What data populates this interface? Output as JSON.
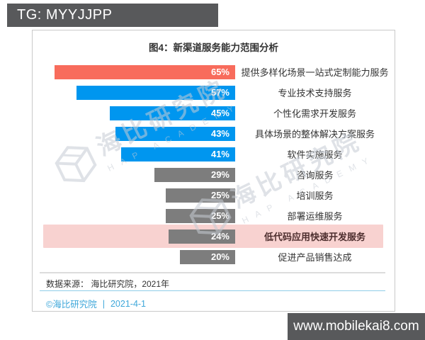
{
  "overlay": {
    "telegram_badge": "TG: MYYJJPP",
    "website_badge": "www.mobilekai8.com",
    "badge_bg": "#58595b"
  },
  "chart": {
    "title": "图4：新渠道服务能力范围分析",
    "source_line": "数据来源： 海比研究院，2021年",
    "copyright": "©海比研究院",
    "copyright_separator": "|",
    "copyright_date": "2021-4-1",
    "watermark": {
      "cn": "海比研究院",
      "en": "HAP ACADEMY"
    }
  },
  "chart_data": {
    "type": "bar",
    "orientation": "horizontal-right-aligned",
    "title": "图4：新渠道服务能力范围分析",
    "categories": [
      "提供多样化场景一站式定制能力服务",
      "专业技术支持服务",
      "个性化需求开发服务",
      "具体场景的整体解决方案服务",
      "软件实施服务",
      "咨询服务",
      "培训服务",
      "部署运维服务",
      "低代码应用快速开发服务",
      "促进产品销售达成"
    ],
    "values": [
      65,
      57,
      45,
      43,
      41,
      29,
      25,
      25,
      24,
      20
    ],
    "value_labels": [
      "65%",
      "57%",
      "45%",
      "43%",
      "41%",
      "29%",
      "25%",
      "25%",
      "24%",
      "20%"
    ],
    "bar_colors": [
      "#f86c5c",
      "#0096ef",
      "#0096ef",
      "#0096ef",
      "#0096ef",
      "#7d7d7d",
      "#7d7d7d",
      "#7d7d7d",
      "#7d7d7d",
      "#7d7d7d"
    ],
    "highlight_index": 8,
    "highlight_band_color": "#f8d2d0",
    "xlim": [
      0,
      65
    ],
    "grid": false,
    "legend": false,
    "source": "海比研究院，2021年"
  },
  "colors": {
    "red_bar": "#f86c5c",
    "blue_bar": "#0096ef",
    "gray_bar": "#7d7d7d",
    "pink_band": "#f8d2d0",
    "copyright_blue": "#3ea7da",
    "panel_border": "#c9c9c9"
  }
}
